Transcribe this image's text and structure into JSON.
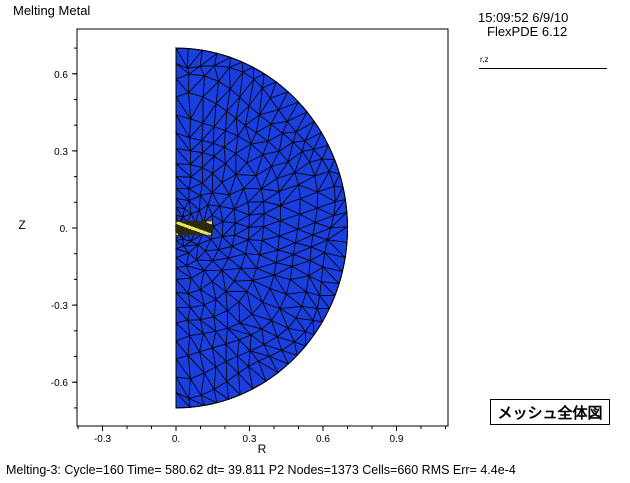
{
  "window": {
    "title": "Melting Metal",
    "timestamp": "15:09:52 6/9/10",
    "version": "FlexPDE 6.12"
  },
  "legend": {
    "label": "r,z"
  },
  "caption": "メッシュ全体図",
  "status_line": "Melting-3:  Cycle=160  Time= 580.62  dt= 39.811  P2  Nodes=1373 Cells=660 RMS Err= 4.4e-4",
  "plot": {
    "xlabel": "R",
    "ylabel": "Z",
    "x_ticks": [
      "-0.3",
      "0.",
      "0.3",
      "0.6",
      "0.9"
    ],
    "y_ticks": [
      "0.6",
      "0.3",
      "0.",
      "-0.3",
      "-0.6"
    ],
    "mesh_fill_color": "#1a3fe0",
    "mesh_line_color": "#000000",
    "hot_spot_color": "#e8e85a"
  }
}
